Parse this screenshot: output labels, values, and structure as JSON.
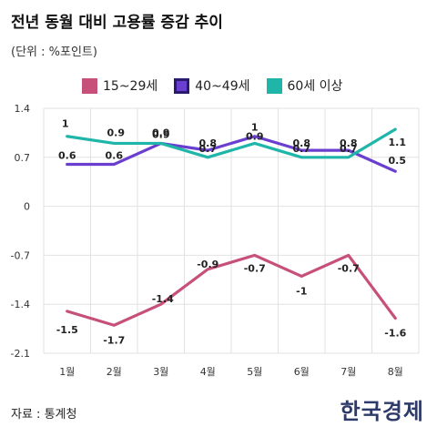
{
  "title": "전년 동월 대비 고용률 증감 추이",
  "unit": "(단위 : %포인트)",
  "source": "자료 : 통계청",
  "logo": "한국경제",
  "chart_data": {
    "type": "line",
    "categories": [
      "1월",
      "2월",
      "3월",
      "4월",
      "5월",
      "6월",
      "7월",
      "8월"
    ],
    "ylim": [
      -2.1,
      1.4
    ],
    "yticks": [
      "1.4",
      "0.7",
      "0",
      "-0.7",
      "-1.4",
      "-2.1"
    ],
    "yticks_values": [
      1.4,
      0.7,
      0,
      -0.7,
      -1.4,
      -2.1
    ],
    "legend_position": "top",
    "series": [
      {
        "name": "15~29세",
        "color": "#c7507b",
        "values": [
          -1.5,
          -1.7,
          -1.4,
          -0.9,
          -0.7,
          -1,
          -0.7,
          -1.6
        ],
        "labels": [
          "-1.5",
          "-1.7",
          "-1.4",
          "-0.9",
          "-0.7",
          "-1",
          "-0.7",
          "-1.6"
        ]
      },
      {
        "name": "40~49세",
        "color": "#6a3fd0",
        "values": [
          0.6,
          0.6,
          0.9,
          0.8,
          1,
          0.8,
          0.8,
          0.5
        ],
        "labels": [
          "0.6",
          "0.6",
          "0.9",
          "0.8",
          "1",
          "0.8",
          "0.8",
          "0.5"
        ]
      },
      {
        "name": "60세 이상",
        "color": "#1fb5a9",
        "values": [
          1,
          0.9,
          0.9,
          0.7,
          0.9,
          0.7,
          0.7,
          1.1
        ],
        "labels": [
          "1",
          "0.9",
          "0.9",
          "0.7",
          "0.9",
          "0.7",
          "0.7",
          "1.1"
        ]
      }
    ]
  }
}
